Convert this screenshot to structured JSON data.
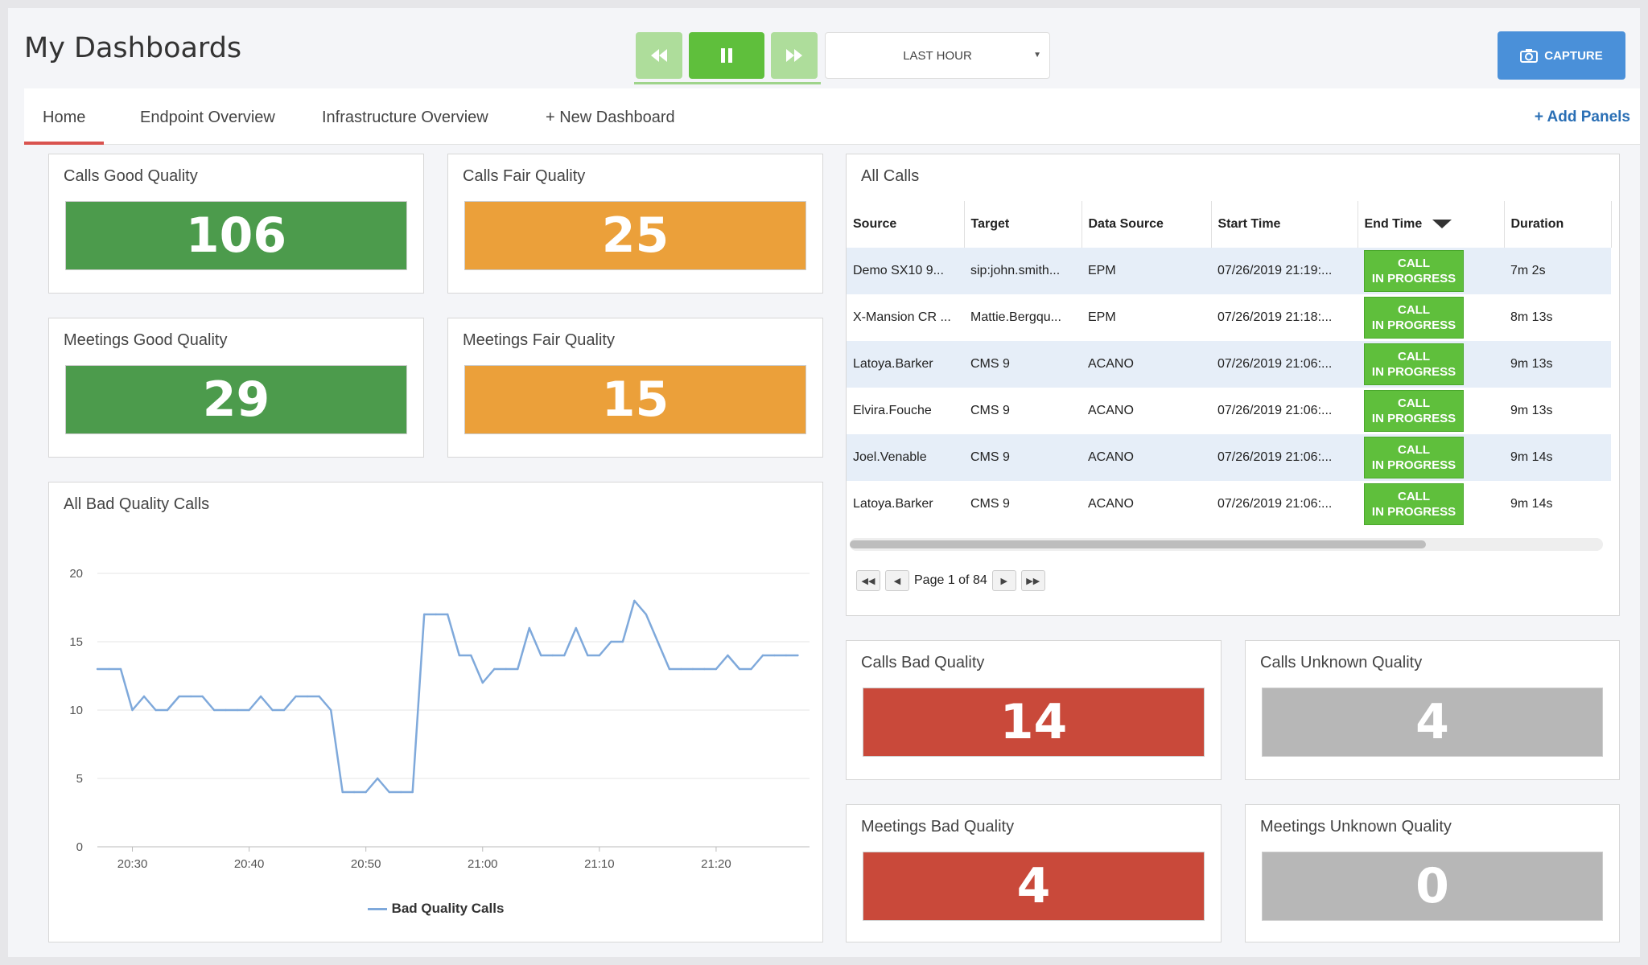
{
  "header": {
    "title": "My Dashboards",
    "playback": {
      "rewind_icon": "rewind-icon",
      "pause_icon": "pause-icon",
      "forward_icon": "fast-forward-icon"
    },
    "time_range": "LAST HOUR",
    "capture_label": "CAPTURE"
  },
  "tabs": [
    {
      "label": "Home",
      "active": true
    },
    {
      "label": "Endpoint Overview"
    },
    {
      "label": "Infrastructure Overview"
    },
    {
      "label": "+ New Dashboard"
    }
  ],
  "add_panels_label": "+ Add Panels",
  "kpis": {
    "calls_good": {
      "title": "Calls Good Quality",
      "value": "106",
      "color": "#4c9b4c"
    },
    "calls_fair": {
      "title": "Calls Fair Quality",
      "value": "25",
      "color": "#eba03a"
    },
    "meetings_good": {
      "title": "Meetings Good Quality",
      "value": "29",
      "color": "#4c9b4c"
    },
    "meetings_fair": {
      "title": "Meetings Fair Quality",
      "value": "15",
      "color": "#eba03a"
    },
    "calls_bad": {
      "title": "Calls Bad Quality",
      "value": "14",
      "color": "#c9493a"
    },
    "calls_unknown": {
      "title": "Calls Unknown Quality",
      "value": "4",
      "color": "#b7b7b7"
    },
    "meetings_bad": {
      "title": "Meetings Bad Quality",
      "value": "4",
      "color": "#c9493a"
    },
    "meetings_unknown": {
      "title": "Meetings Unknown Quality",
      "value": "0",
      "color": "#b7b7b7"
    }
  },
  "all_calls": {
    "title": "All Calls",
    "columns": [
      "Source",
      "Target",
      "Data Source",
      "Start Time",
      "End Time",
      "Duration"
    ],
    "rows": [
      {
        "source": "Demo SX10 9...",
        "target": "sip:john.smith...",
        "data_source": "EPM",
        "start": "07/26/2019 21:19:...",
        "status_1": "CALL",
        "status_2": "IN PROGRESS",
        "duration": "7m 2s"
      },
      {
        "source": "X-Mansion CR ...",
        "target": "Mattie.Bergqu...",
        "data_source": "EPM",
        "start": "07/26/2019 21:18:...",
        "status_1": "CALL",
        "status_2": "IN PROGRESS",
        "duration": "8m 13s"
      },
      {
        "source": "Latoya.Barker",
        "target": "CMS 9",
        "data_source": "ACANO",
        "start": "07/26/2019 21:06:...",
        "status_1": "CALL",
        "status_2": "IN PROGRESS",
        "duration": "9m 13s"
      },
      {
        "source": "Elvira.Fouche",
        "target": "CMS 9",
        "data_source": "ACANO",
        "start": "07/26/2019 21:06:...",
        "status_1": "CALL",
        "status_2": "IN PROGRESS",
        "duration": "9m 13s"
      },
      {
        "source": "Joel.Venable",
        "target": "CMS 9",
        "data_source": "ACANO",
        "start": "07/26/2019 21:06:...",
        "status_1": "CALL",
        "status_2": "IN PROGRESS",
        "duration": "9m 14s"
      },
      {
        "source": "Latoya.Barker",
        "target": "CMS 9",
        "data_source": "ACANO",
        "start": "07/26/2019 21:06:...",
        "status_1": "CALL",
        "status_2": "IN PROGRESS",
        "duration": "9m 14s"
      }
    ],
    "pager": "Page 1 of 84"
  },
  "chart_panel_title": "All Bad Quality Calls",
  "chart_data": {
    "type": "line",
    "title": "All Bad Quality Calls",
    "y_ticks": [
      "0",
      "5",
      "10",
      "15",
      "20"
    ],
    "x_ticks": [
      "20:30",
      "20:40",
      "20:50",
      "21:00",
      "21:10",
      "21:20"
    ],
    "x_tick_minutes": [
      30,
      40,
      50,
      60,
      70,
      80
    ],
    "ylim": [
      0,
      20
    ],
    "xlim": [
      27,
      88
    ],
    "grid": true,
    "legend": "bottom-center",
    "series": [
      {
        "name": "Bad Quality Calls",
        "color": "#7fa9db",
        "x": [
          27,
          28,
          29,
          30,
          31,
          32,
          33,
          34,
          35,
          36,
          37,
          38,
          39,
          40,
          41,
          42,
          43,
          44,
          45,
          46,
          47,
          48,
          49,
          50,
          51,
          52,
          53,
          54,
          55,
          56,
          57,
          58,
          59,
          60,
          61,
          62,
          63,
          64,
          65,
          66,
          67,
          68,
          69,
          70,
          71,
          72,
          73,
          74,
          75,
          76,
          77,
          78,
          79,
          80,
          81,
          82,
          83,
          84,
          85,
          86,
          87
        ],
        "values": [
          13,
          13,
          13,
          10,
          11,
          10,
          10,
          11,
          11,
          11,
          10,
          10,
          10,
          10,
          11,
          10,
          10,
          11,
          11,
          11,
          10,
          4,
          4,
          4,
          5,
          4,
          4,
          4,
          17,
          17,
          17,
          14,
          14,
          12,
          13,
          13,
          13,
          16,
          14,
          14,
          14,
          16,
          14,
          14,
          15,
          15,
          18,
          17,
          15,
          13,
          13,
          13,
          13,
          13,
          14,
          13,
          13,
          14,
          14,
          14,
          14
        ]
      }
    ]
  }
}
